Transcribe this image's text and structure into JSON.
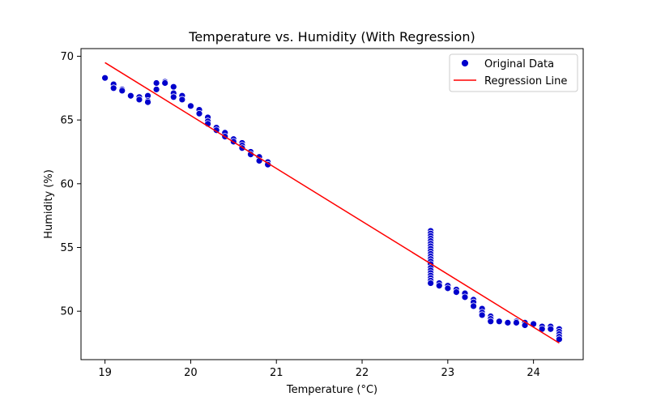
{
  "chart_data": {
    "type": "scatter",
    "title": "Temperature vs. Humidity (With Regression)",
    "xlabel": "Temperature (°C)",
    "ylabel": "Humidity (%)",
    "xlim": [
      18.72,
      24.58
    ],
    "ylim": [
      46.2,
      70.6
    ],
    "xticks": [
      19,
      20,
      21,
      22,
      23,
      24
    ],
    "yticks": [
      50,
      55,
      60,
      65,
      70
    ],
    "grid": false,
    "legend_position": "top-right",
    "series": [
      {
        "name": "Original Data",
        "kind": "scatter",
        "color": "#0000cc",
        "points": [
          [
            19.0,
            68.3
          ],
          [
            19.1,
            67.8
          ],
          [
            19.1,
            67.5
          ],
          [
            19.2,
            67.4
          ],
          [
            19.2,
            67.3
          ],
          [
            19.3,
            66.9
          ],
          [
            19.4,
            66.8
          ],
          [
            19.4,
            66.6
          ],
          [
            19.5,
            66.9
          ],
          [
            19.5,
            66.5
          ],
          [
            19.5,
            66.4
          ],
          [
            19.6,
            67.4
          ],
          [
            19.6,
            67.9
          ],
          [
            19.7,
            68.0
          ],
          [
            19.7,
            67.9
          ],
          [
            19.8,
            67.6
          ],
          [
            19.8,
            67.1
          ],
          [
            19.8,
            66.8
          ],
          [
            19.9,
            66.9
          ],
          [
            19.9,
            66.6
          ],
          [
            20.0,
            66.1
          ],
          [
            20.1,
            65.8
          ],
          [
            20.1,
            65.5
          ],
          [
            20.2,
            65.2
          ],
          [
            20.2,
            64.9
          ],
          [
            20.2,
            64.7
          ],
          [
            20.3,
            64.4
          ],
          [
            20.3,
            64.2
          ],
          [
            20.4,
            64.0
          ],
          [
            20.4,
            63.7
          ],
          [
            20.5,
            63.5
          ],
          [
            20.5,
            63.3
          ],
          [
            20.6,
            63.2
          ],
          [
            20.6,
            63.0
          ],
          [
            20.6,
            62.8
          ],
          [
            20.7,
            62.5
          ],
          [
            20.7,
            62.3
          ],
          [
            20.8,
            62.1
          ],
          [
            20.8,
            61.8
          ],
          [
            20.9,
            61.7
          ],
          [
            20.9,
            61.5
          ],
          [
            22.8,
            56.3
          ],
          [
            22.8,
            56.1
          ],
          [
            22.8,
            55.9
          ],
          [
            22.8,
            55.7
          ],
          [
            22.8,
            55.5
          ],
          [
            22.8,
            55.3
          ],
          [
            22.8,
            55.1
          ],
          [
            22.8,
            54.9
          ],
          [
            22.8,
            54.7
          ],
          [
            22.8,
            54.5
          ],
          [
            22.8,
            54.3
          ],
          [
            22.8,
            54.1
          ],
          [
            22.8,
            53.9
          ],
          [
            22.8,
            53.7
          ],
          [
            22.8,
            53.4
          ],
          [
            22.8,
            53.2
          ],
          [
            22.8,
            53.0
          ],
          [
            22.8,
            52.8
          ],
          [
            22.8,
            52.6
          ],
          [
            22.8,
            52.4
          ],
          [
            22.8,
            52.2
          ],
          [
            22.9,
            52.2
          ],
          [
            22.9,
            52.0
          ],
          [
            23.0,
            52.0
          ],
          [
            23.0,
            51.8
          ],
          [
            23.1,
            51.7
          ],
          [
            23.1,
            51.5
          ],
          [
            23.2,
            51.4
          ],
          [
            23.2,
            51.1
          ],
          [
            23.3,
            50.9
          ],
          [
            23.3,
            50.7
          ],
          [
            23.3,
            50.4
          ],
          [
            23.4,
            50.2
          ],
          [
            23.4,
            49.9
          ],
          [
            23.4,
            49.7
          ],
          [
            23.5,
            49.6
          ],
          [
            23.5,
            49.4
          ],
          [
            23.5,
            49.2
          ],
          [
            23.6,
            49.2
          ],
          [
            23.7,
            49.1
          ],
          [
            23.8,
            49.2
          ],
          [
            23.8,
            49.1
          ],
          [
            23.9,
            49.1
          ],
          [
            23.9,
            48.9
          ],
          [
            24.0,
            49.0
          ],
          [
            24.1,
            48.8
          ],
          [
            24.1,
            48.6
          ],
          [
            24.2,
            48.8
          ],
          [
            24.2,
            48.6
          ],
          [
            24.3,
            48.6
          ],
          [
            24.3,
            48.4
          ],
          [
            24.3,
            48.2
          ],
          [
            24.3,
            48.0
          ],
          [
            24.3,
            47.8
          ]
        ]
      },
      {
        "name": "Regression Line",
        "kind": "line",
        "color": "#ff0000",
        "points": [
          [
            19.0,
            69.5
          ],
          [
            24.3,
            47.5
          ]
        ]
      }
    ]
  }
}
